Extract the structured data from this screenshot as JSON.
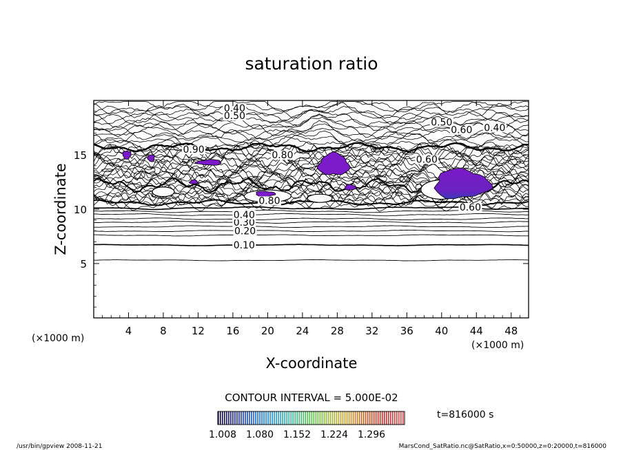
{
  "chart_data": {
    "type": "contour",
    "title": "saturation ratio",
    "xlabel": "X-coordinate",
    "ylabel": "Z-coordinate",
    "x_unit": "(×1000 m)",
    "y_unit": "(×1000 m)",
    "xlim": [
      0,
      50
    ],
    "ylim": [
      0,
      20
    ],
    "x_ticks": [
      4,
      8,
      12,
      16,
      20,
      24,
      28,
      32,
      36,
      40,
      44,
      48
    ],
    "y_ticks": [
      5,
      10,
      15
    ],
    "contour_interval_text": "CONTOUR INTERVAL = 5.000E-02",
    "contour_labels": [
      {
        "text": "0.10",
        "x": 17.3,
        "z": 6.7
      },
      {
        "text": "0.20",
        "x": 17.4,
        "z": 8.0
      },
      {
        "text": "0.30",
        "x": 17.3,
        "z": 8.8
      },
      {
        "text": "0.40",
        "x": 17.3,
        "z": 9.5
      },
      {
        "text": "0.40",
        "x": 16.2,
        "z": 19.3
      },
      {
        "text": "0.50",
        "x": 16.2,
        "z": 18.6
      },
      {
        "text": "0.50",
        "x": 40.0,
        "z": 18.0
      },
      {
        "text": "0.60",
        "x": 42.3,
        "z": 17.3
      },
      {
        "text": "0.40",
        "x": 46.1,
        "z": 17.5
      },
      {
        "text": "0.90",
        "x": 11.5,
        "z": 15.5
      },
      {
        "text": "0.80",
        "x": 21.7,
        "z": 15.0
      },
      {
        "text": "0.60",
        "x": 38.3,
        "z": 14.6
      },
      {
        "text": "0.80",
        "x": 20.2,
        "z": 10.8
      },
      {
        "text": "0.60",
        "x": 43.3,
        "z": 10.2
      }
    ],
    "shaded_levels": [
      1.008,
      1.08,
      1.152,
      1.224,
      1.296
    ],
    "supersaturated_regions": [
      {
        "x": 27.6,
        "z": 14.1
      },
      {
        "x": 42.3,
        "z": 12.3
      },
      {
        "x": 19.7,
        "z": 11.4
      },
      {
        "x": 3.8,
        "z": 15.0
      },
      {
        "x": 6.6,
        "z": 14.7
      },
      {
        "x": 13.3,
        "z": 14.3
      },
      {
        "x": 11.5,
        "z": 12.5
      },
      {
        "x": 29.5,
        "z": 12.0
      }
    ],
    "colorbar": {
      "labels": [
        "1.008",
        "1.080",
        "1.152",
        "1.224",
        "1.296"
      ],
      "colors": [
        "#1a0a4a",
        "#202a9a",
        "#1e6ad0",
        "#2a9ad0",
        "#3ab89a",
        "#5ac04a",
        "#a0b838",
        "#c8a028",
        "#c05a20",
        "#b83030",
        "#e05050"
      ]
    },
    "time_label": "t=816000 s",
    "footer_left": "/usr/bin/gpview  2008-11-21",
    "footer_right": "MarsCond_SatRatio.nc@SatRatio,x=0:50000,z=0:20000,t=816000"
  }
}
